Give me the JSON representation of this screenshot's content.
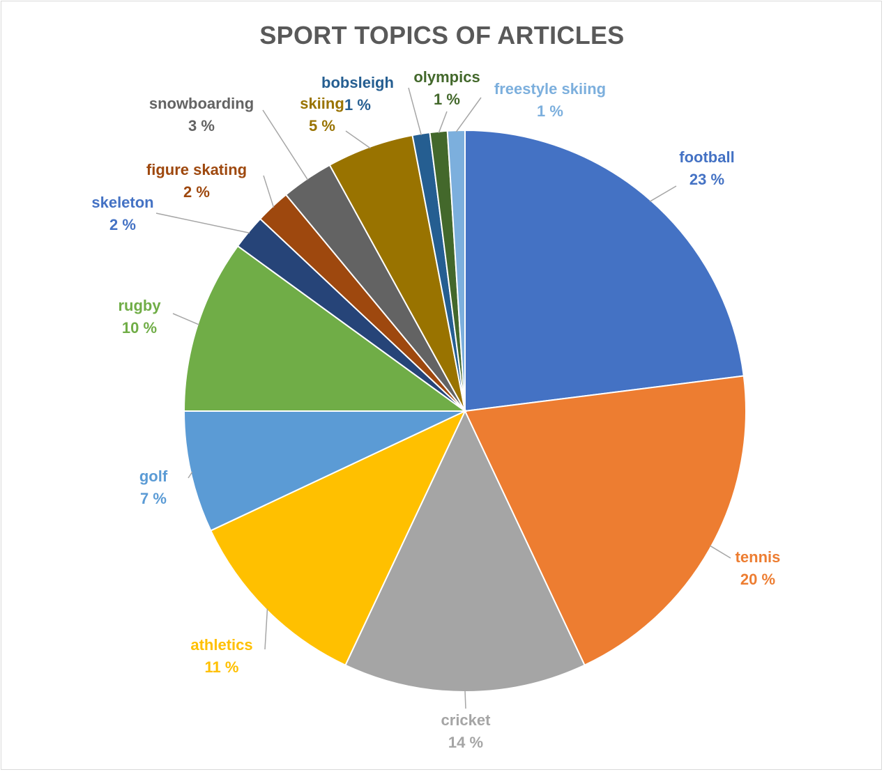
{
  "chart_data": {
    "type": "pie",
    "title": "SPORT TOPICS OF ARTICLES",
    "slices": [
      {
        "label": "football",
        "value": 23,
        "value_text": "23 %",
        "color": "#4472C4"
      },
      {
        "label": "tennis",
        "value": 20,
        "value_text": "20 %",
        "color": "#ED7D31"
      },
      {
        "label": "cricket",
        "value": 14,
        "value_text": "14 %",
        "color": "#A5A5A5"
      },
      {
        "label": "athletics",
        "value": 11,
        "value_text": "11 %",
        "color": "#FFC000"
      },
      {
        "label": "golf",
        "value": 7,
        "value_text": "7 %",
        "color": "#5B9BD5"
      },
      {
        "label": "rugby",
        "value": 10,
        "value_text": "10 %",
        "color": "#70AD47"
      },
      {
        "label": "skeleton",
        "value": 2,
        "value_text": "2 %",
        "color": "#264478"
      },
      {
        "label": "figure skating",
        "value": 2,
        "value_text": "2 %",
        "color": "#9E480E"
      },
      {
        "label": "snowboarding",
        "value": 3,
        "value_text": "3 %",
        "color": "#636363"
      },
      {
        "label": "skiing",
        "value": 5,
        "value_text": "5 %",
        "color": "#997300"
      },
      {
        "label": "bobsleigh",
        "value": 1,
        "value_text": "1 %",
        "color": "#255E91"
      },
      {
        "label": "olympics",
        "value": 1,
        "value_text": "1 %",
        "color": "#43682B"
      },
      {
        "label": "freestyle skiing",
        "value": 1,
        "value_text": "1 %",
        "color": "#7CAFDD"
      }
    ],
    "label_colors": {
      "football": "#4472C4",
      "tennis": "#ED7D31",
      "cricket": "#A5A5A5",
      "athletics": "#FFC000",
      "golf": "#5B9BD5",
      "rugby": "#70AD47",
      "skeleton": "#4472C4",
      "figure skating": "#9E480E",
      "snowboarding": "#636363",
      "skiing": "#997300",
      "bobsleigh": "#255E91",
      "olympics": "#43682B",
      "freestyle skiing": "#7CAFDD"
    },
    "leader_line_color": "#A6A6A6"
  }
}
